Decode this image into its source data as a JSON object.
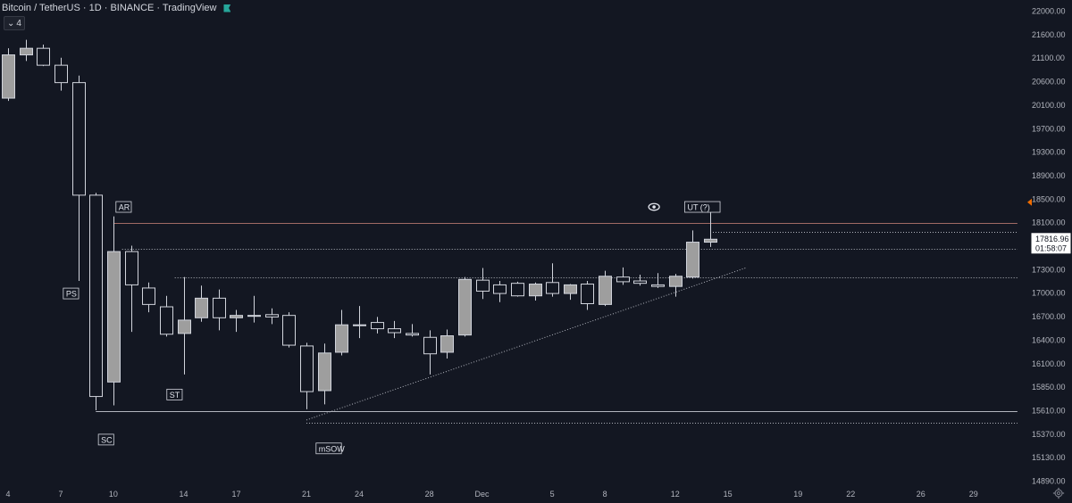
{
  "header": {
    "title": "Bitcoin / TetherUS · 1D · BINANCE · TradingView",
    "indicator_count": "4",
    "flag_color": "#26a69a"
  },
  "price_label": {
    "price": "17816.96",
    "countdown": "01:58:07"
  },
  "colors": {
    "background": "#131722",
    "text": "#b2b5be",
    "candle_up_fill": "#9e9e9e",
    "candle_down_fill": "#131722",
    "candle_stroke": "#d1d4dc",
    "resistance_line": "#a06a64",
    "line_color": "#b2b5be",
    "marker": "#ef6c00"
  },
  "chart_data": {
    "type": "candlestick",
    "title": "",
    "xlabel": "",
    "ylabel": "",
    "ylim": [
      14770,
      22120
    ],
    "y_ticks": [
      22000,
      21600,
      21100,
      20600,
      20100,
      19700,
      19300,
      18900,
      18500,
      18100,
      17700,
      17300,
      17000,
      16700,
      16400,
      16100,
      15850,
      15610,
      15370,
      15130,
      14890
    ],
    "y_tick_labels": [
      "22000.00",
      "21600.00",
      "21100.00",
      "20600.00",
      "20100.00",
      "19700.00",
      "19300.00",
      "18900.00",
      "18500.00",
      "18100.00",
      "17700.00",
      "17300.00",
      "17000.00",
      "16700.00",
      "16400.00",
      "16100.00",
      "15850.00",
      "15610.00",
      "15370.00",
      "15130.00",
      "14890.00"
    ],
    "x_ticks": [
      {
        "day": 0,
        "label": "4"
      },
      {
        "day": 3,
        "label": "7"
      },
      {
        "day": 6,
        "label": "10"
      },
      {
        "day": 10,
        "label": "14"
      },
      {
        "day": 13,
        "label": "17"
      },
      {
        "day": 17,
        "label": "21"
      },
      {
        "day": 20,
        "label": "24"
      },
      {
        "day": 24,
        "label": "28"
      },
      {
        "day": 27,
        "label": "Dec"
      },
      {
        "day": 31,
        "label": "5"
      },
      {
        "day": 34,
        "label": "8"
      },
      {
        "day": 38,
        "label": "12"
      },
      {
        "day": 41,
        "label": "15"
      },
      {
        "day": 45,
        "label": "19"
      },
      {
        "day": 48,
        "label": "22"
      },
      {
        "day": 52,
        "label": "26"
      },
      {
        "day": 55,
        "label": "29"
      }
    ],
    "candles": [
      {
        "day": 0,
        "o": 20240,
        "h": 21300,
        "l": 20180,
        "c": 21160
      },
      {
        "day": 1,
        "o": 21160,
        "h": 21480,
        "l": 21030,
        "c": 21300
      },
      {
        "day": 2,
        "o": 21300,
        "h": 21380,
        "l": 20920,
        "c": 20940
      },
      {
        "day": 3,
        "o": 20940,
        "h": 21100,
        "l": 20400,
        "c": 20570
      },
      {
        "day": 4,
        "o": 20570,
        "h": 20720,
        "l": 17150,
        "c": 18560
      },
      {
        "day": 5,
        "o": 18560,
        "h": 18600,
        "l": 15610,
        "c": 15750
      },
      {
        "day": 6,
        "o": 15900,
        "h": 18200,
        "l": 15660,
        "c": 17600
      },
      {
        "day": 7,
        "o": 17600,
        "h": 17700,
        "l": 16500,
        "c": 17100
      },
      {
        "day": 8,
        "o": 17060,
        "h": 17130,
        "l": 16750,
        "c": 16850
      },
      {
        "day": 9,
        "o": 16820,
        "h": 16960,
        "l": 16440,
        "c": 16470
      },
      {
        "day": 10,
        "o": 16480,
        "h": 17200,
        "l": 15980,
        "c": 16650
      },
      {
        "day": 11,
        "o": 16680,
        "h": 17090,
        "l": 16630,
        "c": 16930
      },
      {
        "day": 12,
        "o": 16930,
        "h": 17040,
        "l": 16520,
        "c": 16680
      },
      {
        "day": 13,
        "o": 16680,
        "h": 16780,
        "l": 16500,
        "c": 16710
      },
      {
        "day": 14,
        "o": 16700,
        "h": 16960,
        "l": 16620,
        "c": 16710
      },
      {
        "day": 15,
        "o": 16720,
        "h": 16800,
        "l": 16600,
        "c": 16690
      },
      {
        "day": 16,
        "o": 16710,
        "h": 16750,
        "l": 16300,
        "c": 16330
      },
      {
        "day": 17,
        "o": 16320,
        "h": 16360,
        "l": 15620,
        "c": 15800
      },
      {
        "day": 18,
        "o": 15810,
        "h": 16350,
        "l": 15670,
        "c": 16230
      },
      {
        "day": 19,
        "o": 16240,
        "h": 16780,
        "l": 16200,
        "c": 16590
      },
      {
        "day": 20,
        "o": 16590,
        "h": 16830,
        "l": 16420,
        "c": 16590
      },
      {
        "day": 21,
        "o": 16620,
        "h": 16690,
        "l": 16480,
        "c": 16540
      },
      {
        "day": 22,
        "o": 16540,
        "h": 16640,
        "l": 16420,
        "c": 16490
      },
      {
        "day": 23,
        "o": 16480,
        "h": 16600,
        "l": 16440,
        "c": 16460
      },
      {
        "day": 24,
        "o": 16430,
        "h": 16520,
        "l": 15980,
        "c": 16220
      },
      {
        "day": 25,
        "o": 16240,
        "h": 16530,
        "l": 16160,
        "c": 16450
      },
      {
        "day": 26,
        "o": 16460,
        "h": 17200,
        "l": 16440,
        "c": 17170
      },
      {
        "day": 27,
        "o": 17160,
        "h": 17320,
        "l": 16920,
        "c": 17020
      },
      {
        "day": 28,
        "o": 17100,
        "h": 17150,
        "l": 16880,
        "c": 16990
      },
      {
        "day": 29,
        "o": 17120,
        "h": 17140,
        "l": 16950,
        "c": 16960
      },
      {
        "day": 30,
        "o": 16960,
        "h": 17130,
        "l": 16900,
        "c": 17110
      },
      {
        "day": 31,
        "o": 17130,
        "h": 17400,
        "l": 16950,
        "c": 16990
      },
      {
        "day": 32,
        "o": 16990,
        "h": 17110,
        "l": 16910,
        "c": 17100
      },
      {
        "day": 33,
        "o": 17110,
        "h": 17150,
        "l": 16780,
        "c": 16860
      },
      {
        "day": 34,
        "o": 16850,
        "h": 17280,
        "l": 16830,
        "c": 17210
      },
      {
        "day": 35,
        "o": 17200,
        "h": 17330,
        "l": 17100,
        "c": 17140
      },
      {
        "day": 36,
        "o": 17150,
        "h": 17230,
        "l": 17090,
        "c": 17120
      },
      {
        "day": 37,
        "o": 17100,
        "h": 17250,
        "l": 17060,
        "c": 17080
      },
      {
        "day": 38,
        "o": 17080,
        "h": 17240,
        "l": 16950,
        "c": 17210
      },
      {
        "day": 39,
        "o": 17200,
        "h": 17960,
        "l": 17180,
        "c": 17760
      },
      {
        "day": 40,
        "o": 17760,
        "h": 18320,
        "l": 17680,
        "c": 17810
      }
    ],
    "horizontal_lines": [
      {
        "price": 18080,
        "from_day": 6,
        "to_day": 57.5,
        "style": "solid",
        "color": "#a06a64"
      },
      {
        "price": 17640,
        "from_day": 6.5,
        "to_day": 57.5,
        "style": "dotted",
        "color": "#b2b5be"
      },
      {
        "price": 17200,
        "from_day": 9.5,
        "to_day": 57.5,
        "style": "dotted",
        "color": "#b2b5be"
      },
      {
        "price": 17940,
        "from_day": 40,
        "to_day": 57.5,
        "style": "dotted",
        "color": "#b2b5be"
      },
      {
        "price": 15600,
        "from_day": 5,
        "to_day": 57.5,
        "style": "solid",
        "color": "#b2b5be"
      },
      {
        "price": 15480,
        "from_day": 17,
        "to_day": 57.5,
        "style": "dotted",
        "color": "#b2b5be"
      }
    ],
    "trend_line": {
      "from": {
        "day": 17,
        "price": 15510
      },
      "to": {
        "day": 42,
        "price": 17320
      }
    },
    "annotations": [
      {
        "label": "AR",
        "day": 6.3,
        "price": 18360
      },
      {
        "label": "PS",
        "day": 3.3,
        "price": 16990
      },
      {
        "label": "ST",
        "day": 9.2,
        "price": 15770
      },
      {
        "label": "SC",
        "day": 5.3,
        "price": 15310
      },
      {
        "label": "mSOW",
        "day": 17.7,
        "price": 15220
      },
      {
        "label": "UT (?)",
        "day": 38.7,
        "price": 18360
      }
    ],
    "eye_marker": {
      "day": 36.8,
      "price": 18360
    },
    "grid": false,
    "last_price_marker": 18440
  }
}
